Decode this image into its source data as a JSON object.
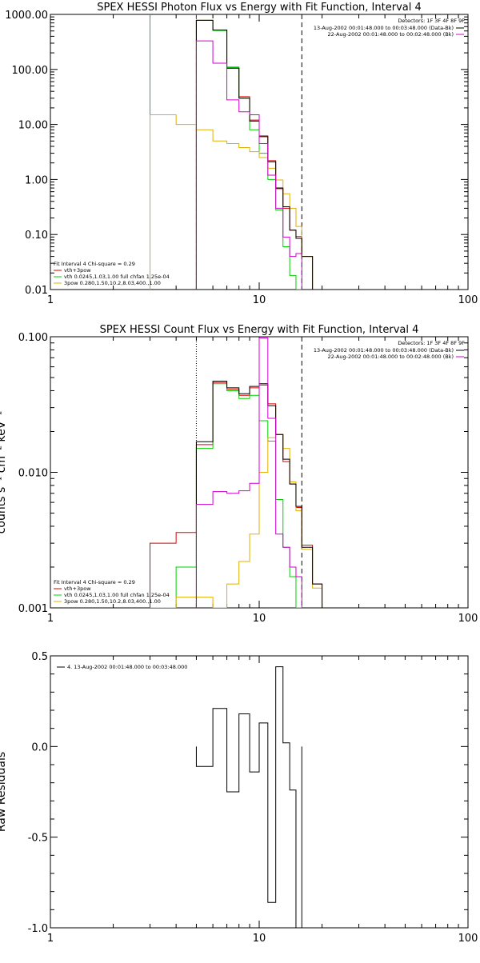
{
  "colors": {
    "data_obs": "#000000",
    "total_fit": "#e00000",
    "vth": "#00d000",
    "bpow": "#e0b000",
    "background": "#d000d0"
  },
  "chart_data": [
    {
      "type": "line",
      "id": "photon",
      "title": "SPEX HESSI Photon Flux vs Energy with Fit Function, Interval 4",
      "xscale": "log",
      "yscale": "log",
      "xlim": [
        1,
        100
      ],
      "ylim": [
        0.01,
        1000
      ],
      "xticks": [
        "1",
        "10",
        "100"
      ],
      "yticks": [
        "0.01",
        "0.10",
        "1.00",
        "10.00",
        "100.00",
        "1000.00"
      ],
      "ytick_values": [
        0.01,
        0.1,
        1,
        10,
        100,
        1000
      ],
      "ylabel": "",
      "vlines": [
        {
          "x": 3.0,
          "style": "solid",
          "color": "#00d000"
        },
        {
          "x": 5.0,
          "style": "dashed",
          "color": "#d000d0"
        },
        {
          "x": 16.0,
          "style": "dashed",
          "color": "#000000"
        }
      ],
      "legend_top_right": {
        "detectors": "Detectors: 1F 3F 4F 8F 9F",
        "lines": [
          {
            "text": "13-Aug-2002 00:01:48.000 to 00:03:48.000 (Data-Bk)",
            "color": "#000000"
          },
          {
            "text": "22-Aug-2002 00:01:48.000 to 00:02:48.000 (Bk)",
            "color": "#d000d0"
          }
        ]
      },
      "legend_bottom_left": {
        "header": "Fit Interval 4   Chi-square = 0.29",
        "lines": [
          {
            "text": "vth+3pow",
            "color": "#e00000"
          },
          {
            "text": "vth 0.0245,1.03,1.00  full chfan 1.25e-04",
            "color": "#00d000"
          },
          {
            "text": "3pow 0.280,1.50,10.2,8.03,400.,1.00",
            "color": "#e0b000"
          }
        ]
      },
      "edges": [
        3.0,
        4.0,
        5.0,
        6.0,
        7.0,
        8.0,
        9.0,
        10.0,
        11.0,
        12.0,
        13.0,
        14.0,
        15.0,
        16.0,
        18.0,
        20.0
      ],
      "series": [
        {
          "name": "vth+3pow",
          "color": "#e00000",
          "values": [
            null,
            null,
            780,
            520,
            110,
            32,
            12,
            6.2,
            2.2,
            0.68,
            0.3,
            0.12,
            0.092,
            0.04,
            0.01
          ]
        },
        {
          "name": "vth",
          "color": "#00d000",
          "values": [
            null,
            null,
            780,
            510,
            108,
            30,
            8.0,
            3.0,
            1.0,
            0.28,
            0.06,
            0.018,
            0.005,
            null,
            null
          ]
        },
        {
          "name": "3pow",
          "color": "#e0b000",
          "values": [
            15,
            10,
            8.0,
            5.0,
            4.5,
            3.8,
            3.2,
            2.5,
            1.6,
            0.98,
            0.55,
            0.3,
            0.14,
            0.04,
            0.01
          ]
        },
        {
          "name": "data",
          "color": "#000000",
          "values": [
            null,
            null,
            780,
            520,
            105,
            30,
            11.5,
            6.0,
            2.1,
            0.7,
            0.32,
            0.12,
            0.085,
            0.04,
            0.01
          ]
        },
        {
          "name": "background",
          "color": "#d000d0",
          "values": [
            null,
            null,
            330,
            130,
            28,
            17,
            15,
            4.5,
            1.2,
            0.3,
            0.09,
            0.04,
            0.045,
            null,
            null
          ]
        }
      ]
    },
    {
      "type": "line",
      "id": "count",
      "title": "SPEX HESSI Count Flux vs Energy with Fit Function, Interval 4",
      "xscale": "log",
      "yscale": "log",
      "xlim": [
        1,
        100
      ],
      "ylim": [
        0.001,
        0.1
      ],
      "xticks": [
        "1",
        "10",
        "100"
      ],
      "yticks": [
        "0.001",
        "0.010",
        "0.100"
      ],
      "ytick_values": [
        0.001,
        0.01,
        0.1
      ],
      "ylabel": "counts s⁻¹ cm⁻² keV⁻¹",
      "vlines": [
        {
          "x": 5.0,
          "style": "dotted",
          "color": "#000000"
        },
        {
          "x": 16.0,
          "style": "dashed",
          "color": "#000000"
        }
      ],
      "legend_top_right": {
        "detectors": "Detectors: 1F 3F 4F 8F 9F",
        "lines": [
          {
            "text": "13-Aug-2002 00:01:48.000 to 00:03:48.000 (Data-Bk)",
            "color": "#000000"
          },
          {
            "text": "22-Aug-2002 00:01:48.000 to 00:02:48.000 (Bk)",
            "color": "#d000d0"
          }
        ]
      },
      "legend_bottom_left": {
        "header": "Fit Interval 4   Chi-square = 0.29",
        "lines": [
          {
            "text": "vth+3pow",
            "color": "#e00000"
          },
          {
            "text": "vth 0.0245,1.03,1.00  full chfan 1.25e-04",
            "color": "#00d000"
          },
          {
            "text": "3pow 0.280,1.50,10.2,8.03,400.,1.00",
            "color": "#e0b000"
          }
        ]
      },
      "edges": [
        3.0,
        4.0,
        5.0,
        6.0,
        7.0,
        8.0,
        9.0,
        10.0,
        11.0,
        12.0,
        13.0,
        14.0,
        15.0,
        16.0,
        18.0,
        20.0
      ],
      "series": [
        {
          "name": "vth+3pow",
          "color": "#e00000",
          "values": [
            0.003,
            0.0036,
            0.016,
            0.046,
            0.041,
            0.037,
            0.042,
            0.044,
            0.032,
            0.019,
            0.012,
            0.0082,
            0.0055,
            0.0029,
            0.0015
          ]
        },
        {
          "name": "vth",
          "color": "#00d000",
          "values": [
            0.001,
            0.002,
            0.015,
            0.045,
            0.04,
            0.035,
            0.037,
            0.024,
            0.017,
            0.0063,
            0.0028,
            0.0017,
            0.001,
            null,
            null
          ]
        },
        {
          "name": "3pow",
          "color": "#e0b000",
          "values": [
            0.001,
            0.0012,
            0.0012,
            0.001,
            0.0015,
            0.0022,
            0.0035,
            0.01,
            0.018,
            0.019,
            0.015,
            0.0085,
            0.0052,
            0.0027,
            0.0014
          ]
        },
        {
          "name": "data",
          "color": "#000000",
          "values": [
            null,
            null,
            0.0168,
            0.047,
            0.042,
            0.038,
            0.043,
            0.045,
            0.031,
            0.019,
            0.0125,
            0.0082,
            0.0056,
            0.0028,
            0.0015
          ]
        },
        {
          "name": "background",
          "color": "#d000d0",
          "values": [
            null,
            null,
            0.0058,
            0.0072,
            0.007,
            0.0073,
            0.0083,
            0.098,
            0.025,
            0.0035,
            0.0028,
            0.002,
            0.0017,
            null,
            null
          ]
        }
      ]
    },
    {
      "type": "line",
      "id": "residuals",
      "title": "",
      "xscale": "log",
      "yscale": "linear",
      "xlim": [
        1,
        100
      ],
      "ylim": [
        -1.0,
        0.5
      ],
      "xticks": [
        "1",
        "10",
        "100"
      ],
      "yticks": [
        "-1.0",
        "-0.5",
        "0.0",
        "0.5"
      ],
      "ytick_values": [
        -1.0,
        -0.5,
        0.0,
        0.5
      ],
      "ylabel": "Raw Residuals",
      "legend_top_left": {
        "text": "4. 13-Aug-2002 00:01:48.000 to 00:03:48.000",
        "color": "#000000"
      },
      "edges": [
        5.0,
        6.0,
        7.0,
        8.0,
        9.0,
        10.0,
        11.0,
        12.0,
        13.0,
        14.0,
        15.0,
        16.0
      ],
      "series": [
        {
          "name": "residual",
          "color": "#000000",
          "values": [
            -0.11,
            0.21,
            -0.25,
            0.18,
            -0.14,
            0.13,
            -0.86,
            0.44,
            0.02,
            -0.24,
            -1.0
          ]
        }
      ]
    }
  ]
}
